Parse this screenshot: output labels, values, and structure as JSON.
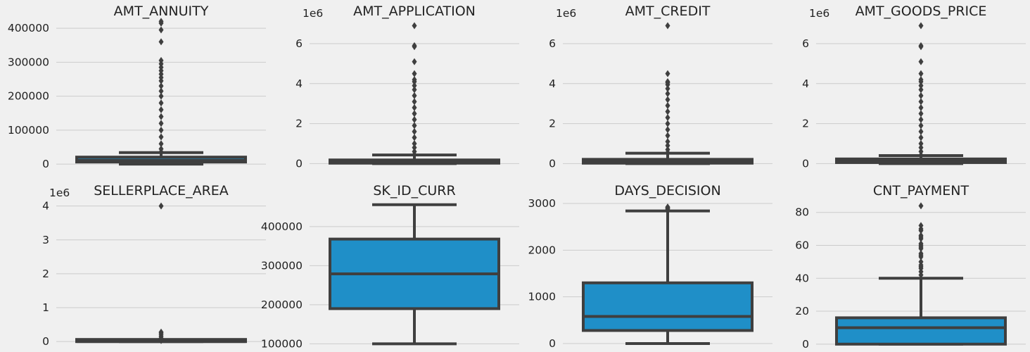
{
  "chart_data": [
    {
      "type": "box",
      "title": "AMT_ANNUITY",
      "offset_label": "",
      "ylim": [
        -10000,
        425000
      ],
      "yticks": [
        0,
        100000,
        200000,
        300000,
        400000
      ],
      "ytick_labels": [
        "0",
        "100000",
        "200000",
        "300000",
        "400000"
      ],
      "grid": true,
      "color": "#1f8fc8",
      "box": {
        "whisker_low": 0,
        "q1": 6300,
        "median": 11300,
        "q3": 20700,
        "whisker_high": 34000
      },
      "outliers": [
        36000,
        45000,
        60000,
        80000,
        100000,
        120000,
        140000,
        160000,
        180000,
        200000,
        215000,
        230000,
        245000,
        255000,
        265000,
        275000,
        285000,
        295000,
        305000,
        360000,
        395000,
        415000,
        420000
      ]
    },
    {
      "type": "box",
      "title": "AMT_APPLICATION",
      "offset_label": "1e6",
      "ylim": [
        -0.2,
        7.2
      ],
      "yticks": [
        0,
        2,
        4,
        6
      ],
      "ytick_labels": [
        "0",
        "2",
        "4",
        "6"
      ],
      "grid": true,
      "color": "#1f8fc8",
      "box": {
        "whisker_low": 0,
        "q1": 0.02,
        "median": 0.07,
        "q3": 0.18,
        "whisker_high": 0.43
      },
      "outliers": [
        0.45,
        0.6,
        0.8,
        1.0,
        1.3,
        1.6,
        1.9,
        2.2,
        2.5,
        2.8,
        3.1,
        3.4,
        3.7,
        3.9,
        4.1,
        4.2,
        4.5,
        5.1,
        5.85,
        5.9,
        6.9
      ]
    },
    {
      "type": "box",
      "title": "AMT_CREDIT",
      "offset_label": "1e6",
      "ylim": [
        -0.2,
        7.2
      ],
      "yticks": [
        0,
        2,
        4,
        6
      ],
      "ytick_labels": [
        "0",
        "2",
        "4",
        "6"
      ],
      "grid": true,
      "color": "#1f8fc8",
      "box": {
        "whisker_low": 0,
        "q1": 0.02,
        "median": 0.08,
        "q3": 0.21,
        "whisker_high": 0.52
      },
      "outliers": [
        0.55,
        0.7,
        0.9,
        1.1,
        1.4,
        1.7,
        2.0,
        2.3,
        2.6,
        2.9,
        3.2,
        3.5,
        3.75,
        3.95,
        4.05,
        4.1,
        4.5,
        6.9
      ]
    },
    {
      "type": "box",
      "title": "AMT_GOODS_PRICE",
      "offset_label": "1e6",
      "ylim": [
        -0.2,
        7.2
      ],
      "yticks": [
        0,
        2,
        4,
        6
      ],
      "ytick_labels": [
        "0",
        "2",
        "4",
        "6"
      ],
      "grid": true,
      "color": "#1f8fc8",
      "box": {
        "whisker_low": 0,
        "q1": 0.05,
        "median": 0.11,
        "q3": 0.23,
        "whisker_high": 0.4
      },
      "outliers": [
        0.42,
        0.6,
        0.8,
        1.0,
        1.3,
        1.6,
        1.9,
        2.2,
        2.5,
        2.8,
        3.1,
        3.4,
        3.7,
        3.9,
        4.1,
        4.2,
        4.5,
        5.1,
        5.85,
        5.9,
        6.9
      ]
    },
    {
      "type": "box",
      "title": "SELLERPLACE_AREA",
      "offset_label": "1e6",
      "ylim": [
        -0.1,
        4.2
      ],
      "yticks": [
        0,
        1,
        2,
        3,
        4
      ],
      "ytick_labels": [
        "0",
        "1",
        "2",
        "3",
        "4"
      ],
      "grid": true,
      "color": "#1f8fc8",
      "box": {
        "whisker_low": 0,
        "q1": 0,
        "median": 0,
        "q3": 0.001,
        "whisker_high": 0.002
      },
      "outliers": [
        0.03,
        0.06,
        0.1,
        0.15,
        0.2,
        0.25,
        0.28,
        4.0
      ]
    },
    {
      "type": "box",
      "title": "SK_ID_CURR",
      "offset_label": "",
      "ylim": [
        97000,
        470000
      ],
      "yticks": [
        100000,
        200000,
        300000,
        400000
      ],
      "ytick_labels": [
        "100000",
        "200000",
        "300000",
        "400000"
      ],
      "grid": true,
      "color": "#1f8fc8",
      "box": {
        "whisker_low": 100000,
        "q1": 190000,
        "median": 279000,
        "q3": 368000,
        "whisker_high": 456000
      },
      "outliers": []
    },
    {
      "type": "box",
      "title": "DAYS_DECISION",
      "offset_label": "",
      "ylim": [
        -30,
        3090
      ],
      "yticks": [
        0,
        1000,
        2000,
        3000
      ],
      "ytick_labels": [
        "0",
        "1000",
        "2000",
        "3000"
      ],
      "grid": true,
      "color": "#1f8fc8",
      "box": {
        "whisker_low": 1,
        "q1": 280,
        "median": 580,
        "q3": 1300,
        "whisker_high": 2840
      },
      "outliers": [
        2860,
        2880,
        2900,
        2920,
        2922
      ]
    },
    {
      "type": "box",
      "title": "CNT_PAYMENT",
      "offset_label": "",
      "ylim": [
        -0.5,
        88
      ],
      "yticks": [
        0,
        20,
        40,
        60,
        80
      ],
      "ytick_labels": [
        "0",
        "20",
        "40",
        "60",
        "80"
      ],
      "grid": true,
      "color": "#1f8fc8",
      "box": {
        "whisker_low": 0,
        "q1": 0,
        "median": 10,
        "q3": 16,
        "whisker_high": 40
      },
      "outliers": [
        42,
        44,
        46,
        47,
        48,
        50,
        53,
        54,
        55,
        58,
        59,
        60,
        61,
        64,
        65,
        66,
        69,
        70,
        72,
        84
      ]
    }
  ]
}
